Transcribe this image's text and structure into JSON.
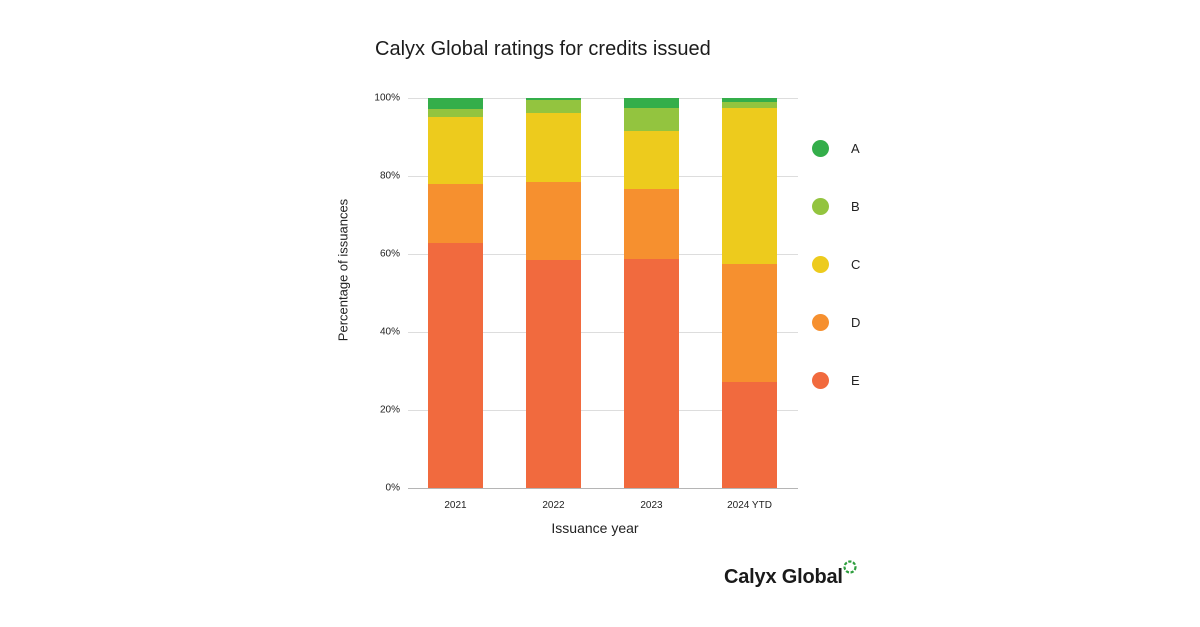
{
  "title": "Calyx Global ratings for credits issued",
  "colors": {
    "A": "#34ae4a",
    "B": "#93c43f",
    "C": "#edcb1d",
    "D": "#f6902f",
    "E": "#f16a3e",
    "grid": "#dddddd",
    "logo_ring": "#2e9e3e"
  },
  "chart_data": {
    "type": "bar",
    "stacked": true,
    "normalized": true,
    "title": "Calyx Global ratings for credits issued",
    "xlabel": "Issuance year",
    "ylabel": "Percentage of issuances",
    "ylim": [
      0,
      100
    ],
    "yticks": [
      "0%",
      "20%",
      "40%",
      "60%",
      "80%",
      "100%"
    ],
    "grid": true,
    "legend_position": "right",
    "categories": [
      "2021",
      "2022",
      "2023",
      "2024 YTD"
    ],
    "series": [
      {
        "name": "E",
        "values": [
          62.9,
          58.5,
          58.6,
          27.2
        ]
      },
      {
        "name": "D",
        "values": [
          15.0,
          19.9,
          18.0,
          30.2
        ]
      },
      {
        "name": "C",
        "values": [
          17.3,
          17.7,
          14.9,
          40.1
        ]
      },
      {
        "name": "B",
        "values": [
          2.1,
          3.5,
          5.9,
          1.5
        ]
      },
      {
        "name": "A",
        "values": [
          2.7,
          0.4,
          2.6,
          1.0
        ]
      }
    ]
  },
  "legend": [
    {
      "label": "A"
    },
    {
      "label": "B"
    },
    {
      "label": "C"
    },
    {
      "label": "D"
    },
    {
      "label": "E"
    }
  ],
  "logo": {
    "text": "Calyx Global",
    "icon": "dashed-ring-icon"
  }
}
